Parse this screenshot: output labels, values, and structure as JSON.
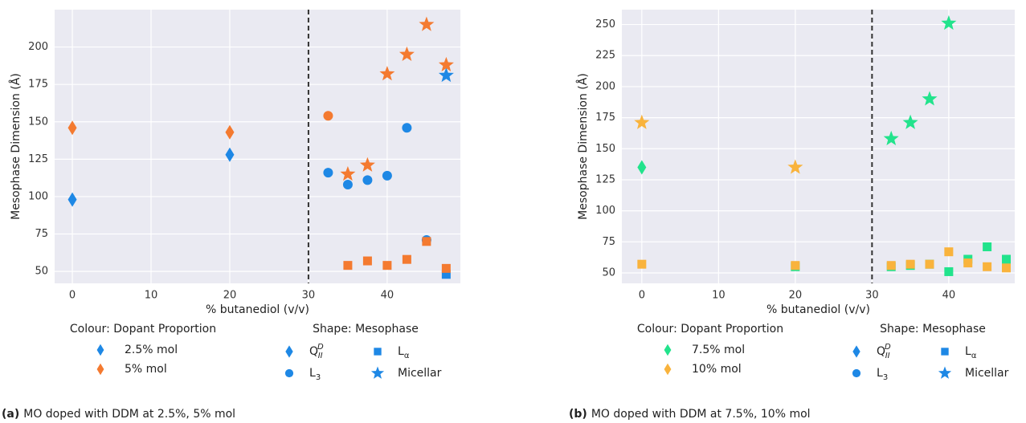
{
  "chart_data": [
    {
      "type": "scatter",
      "xlabel": "% butanediol (v/v)",
      "ylabel": "Mesophase Dimension (Å)",
      "xlim": [
        -2.25,
        49.3
      ],
      "ylim": [
        42,
        225
      ],
      "xticks": [
        0,
        10,
        20,
        30,
        40
      ],
      "yticks": [
        50,
        75,
        100,
        125,
        150,
        175,
        200
      ],
      "grid": true,
      "vline_x": 30,
      "colour_legend": {
        "title": "Colour: Dopant Proportion",
        "entries": [
          {
            "name": "2.5% mol",
            "color": "#1e88e5"
          },
          {
            "name": "5% mol",
            "color": "#f47a30"
          }
        ]
      },
      "shape_legend": {
        "title": "Shape: Mesophase",
        "color": "#1e88e5",
        "entries": [
          {
            "base": "Q",
            "sub": "II",
            "sup": "D"
          },
          {
            "base": "L",
            "sub": "3"
          },
          {
            "base": "L",
            "sub": "α"
          },
          {
            "base": "Micellar"
          }
        ]
      },
      "series": [
        {
          "name": "2.5% mol",
          "mesophase": 0,
          "x": [
            0,
            20
          ],
          "y": [
            98,
            128
          ]
        },
        {
          "name": "2.5% mol",
          "mesophase": 1,
          "x": [
            32.5,
            35,
            37.5,
            40,
            42.5,
            45
          ],
          "y": [
            116,
            108,
            111,
            114,
            146,
            71
          ]
        },
        {
          "name": "2.5% mol",
          "mesophase": 2,
          "x": [
            47.5
          ],
          "y": [
            48
          ]
        },
        {
          "name": "2.5% mol",
          "mesophase": 3,
          "x": [
            47.5
          ],
          "y": [
            181
          ]
        },
        {
          "name": "5% mol",
          "mesophase": 0,
          "x": [
            0,
            20
          ],
          "y": [
            146,
            143
          ]
        },
        {
          "name": "5% mol",
          "mesophase": 1,
          "x": [
            32.5
          ],
          "y": [
            154
          ]
        },
        {
          "name": "5% mol",
          "mesophase": 2,
          "x": [
            35,
            37.5,
            40,
            42.5,
            45,
            47.5
          ],
          "y": [
            54,
            57,
            54,
            58,
            70,
            52
          ]
        },
        {
          "name": "5% mol",
          "mesophase": 3,
          "x": [
            35,
            37.5,
            40,
            42.5,
            45,
            47.5
          ],
          "y": [
            115,
            121,
            182,
            195,
            215,
            188
          ]
        }
      ],
      "caption": {
        "label": "(a)",
        "text": "MO doped with DDM at 2.5%, 5% mol"
      }
    },
    {
      "type": "scatter",
      "xlabel": "% butanediol (v/v)",
      "ylabel": "Mesophase Dimension (Å)",
      "xlim": [
        -2.6,
        48.6
      ],
      "ylim": [
        41.6,
        262
      ],
      "xticks": [
        0,
        10,
        20,
        30,
        40
      ],
      "yticks": [
        50,
        75,
        100,
        125,
        150,
        175,
        200,
        225,
        250
      ],
      "grid": true,
      "vline_x": 30,
      "colour_legend": {
        "title": "Colour: Dopant Proportion",
        "entries": [
          {
            "name": "7.5% mol",
            "color": "#22e38c"
          },
          {
            "name": "10% mol",
            "color": "#f9b33c"
          }
        ]
      },
      "shape_legend": {
        "title": "Shape: Mesophase",
        "color": "#1e88e5",
        "entries": [
          {
            "base": "Q",
            "sub": "II",
            "sup": "D"
          },
          {
            "base": "L",
            "sub": "3"
          },
          {
            "base": "L",
            "sub": "α"
          },
          {
            "base": "Micellar"
          }
        ]
      },
      "series": [
        {
          "name": "7.5% mol",
          "mesophase": 0,
          "x": [
            0
          ],
          "y": [
            135
          ]
        },
        {
          "name": "7.5% mol",
          "mesophase": 2,
          "x": [
            20,
            32.5,
            35,
            37.5,
            40,
            42.5,
            45,
            47.5
          ],
          "y": [
            55,
            55,
            56,
            57,
            51,
            61,
            71,
            61
          ]
        },
        {
          "name": "7.5% mol",
          "mesophase": 3,
          "x": [
            32.5,
            35,
            37.5,
            40
          ],
          "y": [
            158,
            171,
            190,
            251
          ]
        },
        {
          "name": "10% mol",
          "mesophase": 2,
          "x": [
            0,
            20,
            32.5,
            35,
            37.5,
            40,
            42.5,
            45,
            47.5
          ],
          "y": [
            57,
            56,
            56,
            57,
            57,
            67,
            58,
            55,
            54
          ]
        },
        {
          "name": "10% mol",
          "mesophase": 3,
          "x": [
            0,
            20
          ],
          "y": [
            171,
            135
          ]
        }
      ],
      "caption": {
        "label": "(b)",
        "text": "MO doped with DDM at 7.5%, 10% mol"
      }
    }
  ]
}
